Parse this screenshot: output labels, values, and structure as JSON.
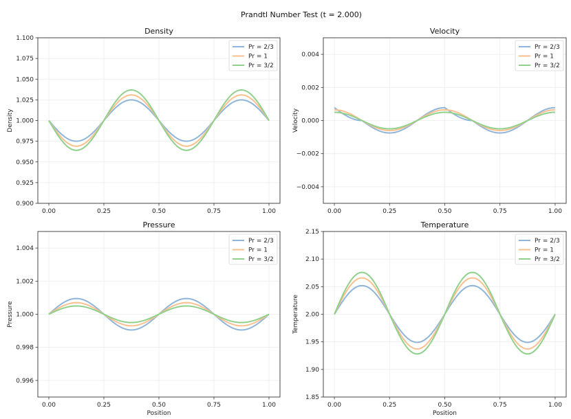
{
  "suptitle": "Prandtl Number Test (t = 2.000)",
  "series_names": [
    "Pr = 2/3",
    "Pr = 1",
    "Pr = 3/2"
  ],
  "series_colors": [
    "#8fb5d9",
    "#f9bf8f",
    "#8fd18a"
  ],
  "chart_data": [
    {
      "type": "line",
      "title": "Density",
      "xlabel": "",
      "ylabel": "Density",
      "xlim": [
        -0.05,
        1.05
      ],
      "ylim": [
        0.9,
        1.1
      ],
      "xticks": [
        0.0,
        0.25,
        0.5,
        0.75,
        1.0
      ],
      "xtick_labels": [
        "0.00",
        "0.25",
        "0.50",
        "0.75",
        "1.00"
      ],
      "yticks": [
        0.9,
        0.925,
        0.95,
        0.975,
        1.0,
        1.025,
        1.05,
        1.075,
        1.1
      ],
      "ytick_labels": [
        "0.900",
        "0.925",
        "0.950",
        "0.975",
        "1.000",
        "1.025",
        "1.050",
        "1.075",
        "1.100"
      ],
      "grid": true,
      "legend": "top-right",
      "x": [
        0,
        0.125,
        0.25,
        0.375,
        0.5,
        0.625,
        0.75,
        0.875,
        1.0
      ],
      "series": [
        {
          "name": "Pr = 2/3",
          "values": [
            1.0,
            0.975,
            1.0,
            1.025,
            1.0,
            0.975,
            1.0,
            1.025,
            1.0
          ]
        },
        {
          "name": "Pr = 1",
          "values": [
            1.0,
            0.969,
            1.0,
            1.031,
            1.0,
            0.969,
            1.0,
            1.031,
            1.0
          ]
        },
        {
          "name": "Pr = 3/2",
          "values": [
            1.0,
            0.964,
            1.0,
            1.037,
            1.0,
            0.964,
            1.0,
            1.037,
            1.0
          ]
        }
      ]
    },
    {
      "type": "line",
      "title": "Velocity",
      "xlabel": "",
      "ylabel": "Velocity",
      "xlim": [
        -0.05,
        1.05
      ],
      "ylim": [
        -0.005,
        0.005
      ],
      "xticks": [
        0.0,
        0.25,
        0.5,
        0.75,
        1.0
      ],
      "xtick_labels": [
        "0.00",
        "0.25",
        "0.50",
        "0.75",
        "1.00"
      ],
      "yticks": [
        -0.004,
        -0.002,
        0.0,
        0.002,
        0.004
      ],
      "ytick_labels": [
        "−0.004",
        "−0.002",
        "0.000",
        "0.002",
        "0.004"
      ],
      "grid": true,
      "legend": "top-right",
      "x": [
        0,
        0.125,
        0.25,
        0.375,
        0.5,
        0.625,
        0.75,
        0.875,
        1.0
      ],
      "series": [
        {
          "name": "Pr = 2/3",
          "values": [
            0.00078,
            0.0,
            -0.00075,
            0.0,
            0.00078,
            0.0,
            -0.00075,
            0.0,
            0.00078
          ]
        },
        {
          "name": "Pr = 1",
          "values": [
            0.00065,
            0.0,
            -0.0006,
            0.0,
            0.00065,
            0.0,
            -0.0006,
            0.0,
            0.00065
          ]
        },
        {
          "name": "Pr = 3/2",
          "values": [
            0.0005,
            0.0,
            -0.0005,
            0.0,
            0.0005,
            0.0,
            -0.0005,
            0.0,
            0.0005
          ]
        }
      ]
    },
    {
      "type": "line",
      "title": "Pressure",
      "xlabel": "Position",
      "ylabel": "Pressure",
      "xlim": [
        -0.05,
        1.05
      ],
      "ylim": [
        0.995,
        1.005
      ],
      "xticks": [
        0.0,
        0.25,
        0.5,
        0.75,
        1.0
      ],
      "xtick_labels": [
        "0.00",
        "0.25",
        "0.50",
        "0.75",
        "1.00"
      ],
      "yticks": [
        0.996,
        0.998,
        1.0,
        1.002,
        1.004
      ],
      "ytick_labels": [
        "0.996",
        "0.998",
        "1.000",
        "1.002",
        "1.004"
      ],
      "grid": true,
      "legend": "top-right",
      "x": [
        0,
        0.125,
        0.25,
        0.375,
        0.5,
        0.625,
        0.75,
        0.875,
        1.0
      ],
      "series": [
        {
          "name": "Pr = 2/3",
          "values": [
            1.0,
            1.00095,
            1.0,
            0.99905,
            1.0,
            1.00095,
            1.0,
            0.99905,
            1.0
          ]
        },
        {
          "name": "Pr = 1",
          "values": [
            1.0,
            1.0007,
            1.0,
            0.9993,
            1.0,
            1.0007,
            1.0,
            0.9993,
            1.0
          ]
        },
        {
          "name": "Pr = 3/2",
          "values": [
            1.0,
            1.0005,
            1.0,
            0.9995,
            1.0,
            1.0005,
            1.0,
            0.9995,
            1.0
          ]
        }
      ]
    },
    {
      "type": "line",
      "title": "Temperature",
      "xlabel": "Position",
      "ylabel": "Temperature",
      "xlim": [
        -0.05,
        1.05
      ],
      "ylim": [
        1.85,
        2.15
      ],
      "xticks": [
        0.0,
        0.25,
        0.5,
        0.75,
        1.0
      ],
      "xtick_labels": [
        "0.00",
        "0.25",
        "0.50",
        "0.75",
        "1.00"
      ],
      "yticks": [
        1.85,
        1.9,
        1.95,
        2.0,
        2.05,
        2.1,
        2.15
      ],
      "ytick_labels": [
        "1.85",
        "1.90",
        "1.95",
        "2.00",
        "2.05",
        "2.10",
        "2.15"
      ],
      "grid": true,
      "legend": "top-right",
      "x": [
        0,
        0.125,
        0.25,
        0.375,
        0.5,
        0.625,
        0.75,
        0.875,
        1.0
      ],
      "series": [
        {
          "name": "Pr = 2/3",
          "values": [
            2.0,
            2.052,
            2.0,
            1.949,
            2.0,
            2.052,
            2.0,
            1.949,
            2.0
          ]
        },
        {
          "name": "Pr = 1",
          "values": [
            2.0,
            2.066,
            2.0,
            1.937,
            2.0,
            2.066,
            2.0,
            1.937,
            2.0
          ]
        },
        {
          "name": "Pr = 3/2",
          "values": [
            2.0,
            2.076,
            2.0,
            1.928,
            2.0,
            2.076,
            2.0,
            1.928,
            2.0
          ]
        }
      ]
    }
  ]
}
